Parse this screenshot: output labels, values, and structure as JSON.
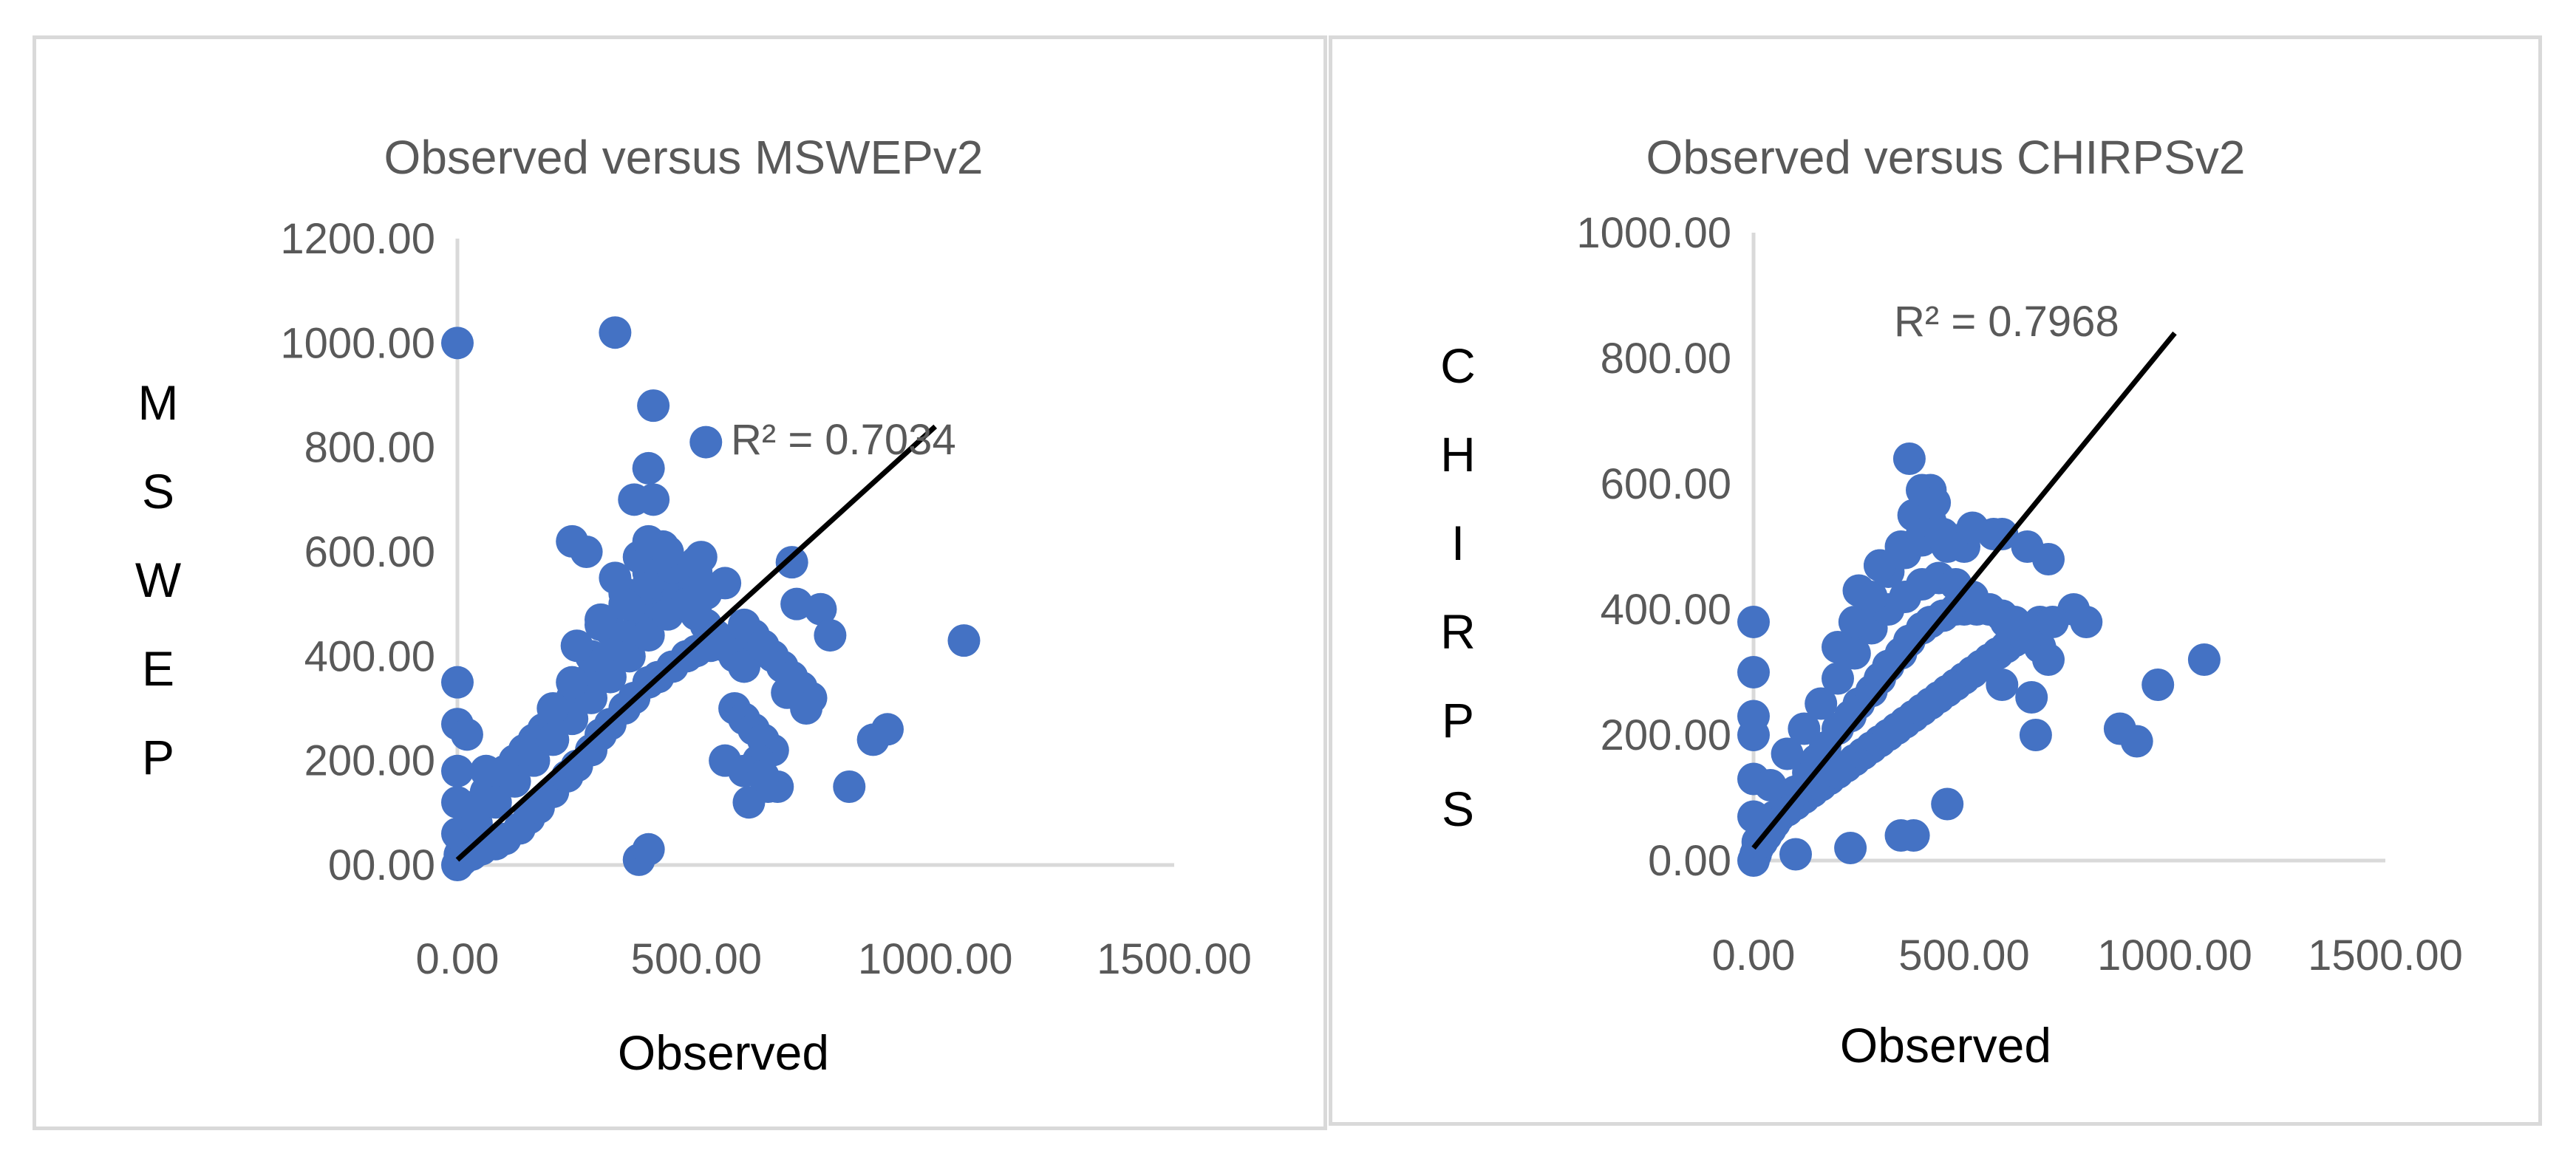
{
  "chart_data": [
    {
      "type": "scatter",
      "title": "Observed versus MSWEPv2",
      "xlabel": "Observed",
      "ylabel": "MSWEP",
      "xlim": [
        0,
        1500
      ],
      "ylim": [
        0,
        1200
      ],
      "x_ticks": [
        "0.00",
        "500.00",
        "1000.00",
        "1500.00"
      ],
      "y_ticks": [
        "00.00",
        "200.00",
        "400.00",
        "600.00",
        "800.00",
        "1000.00",
        "1200.00"
      ],
      "grid": false,
      "marker_color": "#4472C4",
      "trendline": {
        "type": "linear",
        "x": [
          0,
          1000
        ],
        "y": [
          10,
          840
        ],
        "color": "#000000",
        "r2_label": "R² = 0.7034"
      },
      "series": [
        {
          "x": [
            0,
            5,
            10,
            20,
            30,
            40,
            50,
            60,
            80,
            100,
            120,
            140,
            160,
            180,
            200,
            220,
            240,
            260,
            280,
            300,
            320,
            340,
            360,
            380,
            400,
            420,
            440,
            460,
            480,
            500,
            520,
            540,
            560,
            580,
            600,
            0,
            0,
            0,
            10,
            30,
            50,
            80,
            100,
            130,
            150,
            170,
            200,
            230,
            250,
            280,
            300,
            320,
            350,
            370,
            400,
            420,
            450,
            480,
            500,
            530,
            560,
            40,
            80,
            120,
            160,
            200,
            240,
            280,
            320,
            360,
            400,
            440,
            480,
            520,
            560,
            200,
            240,
            280,
            320,
            360,
            400,
            440,
            480,
            250,
            300,
            350,
            400,
            450,
            500,
            300,
            350,
            400,
            450,
            500,
            330,
            380,
            430,
            0,
            0,
            330,
            410,
            520,
            400,
            410,
            370,
            240,
            270,
            400,
            440,
            510,
            700,
            710,
            760,
            780,
            870,
            900,
            1060,
            670,
            820,
            380,
            400,
            0,
            20,
            60,
            600,
            620,
            640,
            660,
            680,
            700,
            720,
            740,
            580,
            600,
            620,
            640,
            660,
            650,
            610,
            630,
            690,
            730,
            560,
            600,
            640
          ],
          "y": [
            0,
            20,
            40,
            60,
            80,
            100,
            120,
            140,
            160,
            180,
            200,
            220,
            240,
            260,
            280,
            300,
            320,
            340,
            360,
            380,
            400,
            420,
            440,
            460,
            480,
            500,
            520,
            540,
            500,
            480,
            460,
            440,
            420,
            400,
            380,
            180,
            120,
            60,
            10,
            20,
            30,
            40,
            50,
            70,
            90,
            110,
            140,
            170,
            190,
            220,
            250,
            270,
            300,
            320,
            350,
            360,
            380,
            400,
            410,
            420,
            430,
            80,
            120,
            160,
            200,
            240,
            280,
            320,
            360,
            400,
            440,
            480,
            500,
            520,
            540,
            300,
            350,
            400,
            450,
            500,
            530,
            550,
            560,
            420,
            470,
            520,
            560,
            570,
            560,
            460,
            500,
            540,
            570,
            580,
            550,
            590,
            610,
            1000,
            350,
            1020,
            880,
            810,
            760,
            700,
            700,
            620,
            600,
            620,
            600,
            590,
            580,
            500,
            490,
            440,
            240,
            260,
            430,
            150,
            150,
            10,
            30,
            270,
            250,
            180,
            460,
            440,
            420,
            400,
            380,
            360,
            340,
            320,
            300,
            280,
            260,
            240,
            220,
            150,
            120,
            200,
            330,
            300,
            200,
            180,
            170
          ]
        }
      ]
    },
    {
      "type": "scatter",
      "title": "Observed versus CHIRPSv2",
      "xlabel": "Observed",
      "ylabel": "CHIRPS",
      "xlim": [
        0,
        1500
      ],
      "ylim": [
        0,
        1000
      ],
      "x_ticks": [
        "0.00",
        "500.00",
        "1000.00",
        "1500.00"
      ],
      "y_ticks": [
        "0.00",
        "200.00",
        "400.00",
        "600.00",
        "800.00",
        "1000.00"
      ],
      "grid": false,
      "marker_color": "#4472C4",
      "trendline": {
        "type": "linear",
        "x": [
          0,
          1000
        ],
        "y": [
          20,
          840
        ],
        "color": "#000000",
        "r2_label": "R² = 0.7968"
      },
      "series": [
        {
          "x": [
            0,
            5,
            10,
            20,
            30,
            40,
            50,
            60,
            80,
            100,
            120,
            140,
            160,
            180,
            200,
            220,
            240,
            260,
            280,
            300,
            320,
            340,
            360,
            380,
            400,
            420,
            440,
            460,
            480,
            500,
            520,
            540,
            560,
            580,
            600,
            620,
            640,
            660,
            680,
            0,
            0,
            0,
            10,
            30,
            50,
            80,
            100,
            130,
            150,
            170,
            200,
            230,
            250,
            280,
            300,
            320,
            350,
            370,
            400,
            420,
            450,
            480,
            500,
            530,
            560,
            590,
            620,
            650,
            680,
            700,
            40,
            80,
            120,
            160,
            200,
            240,
            280,
            320,
            360,
            400,
            440,
            480,
            520,
            560,
            600,
            640,
            200,
            240,
            280,
            320,
            360,
            400,
            440,
            480,
            250,
            300,
            350,
            400,
            450,
            500,
            300,
            350,
            380,
            420,
            460,
            0,
            0,
            0,
            370,
            400,
            420,
            430,
            520,
            570,
            590,
            650,
            700,
            760,
            790,
            710,
            590,
            660,
            670,
            870,
            910,
            960,
            1070,
            350,
            380,
            460,
            230,
            100
          ],
          "y": [
            0,
            10,
            20,
            30,
            40,
            50,
            60,
            70,
            80,
            90,
            100,
            110,
            120,
            130,
            140,
            150,
            160,
            170,
            180,
            190,
            200,
            210,
            220,
            230,
            240,
            250,
            260,
            270,
            280,
            290,
            300,
            310,
            320,
            330,
            340,
            350,
            360,
            370,
            380,
            200,
            130,
            70,
            30,
            50,
            70,
            90,
            110,
            140,
            160,
            180,
            210,
            230,
            250,
            270,
            290,
            310,
            330,
            350,
            370,
            380,
            390,
            400,
            400,
            400,
            400,
            390,
            380,
            360,
            340,
            320,
            120,
            170,
            210,
            250,
            290,
            330,
            370,
            400,
            420,
            440,
            450,
            440,
            420,
            400,
            380,
            360,
            340,
            380,
            420,
            460,
            490,
            510,
            520,
            510,
            430,
            470,
            500,
            520,
            520,
            500,
            470,
            490,
            550,
            540,
            500,
            380,
            300,
            230,
            640,
            590,
            590,
            570,
            530,
            520,
            520,
            500,
            480,
            400,
            380,
            380,
            280,
            260,
            200,
            210,
            190,
            280,
            320,
            40,
            40,
            90,
            20,
            10
          ]
        }
      ]
    }
  ]
}
